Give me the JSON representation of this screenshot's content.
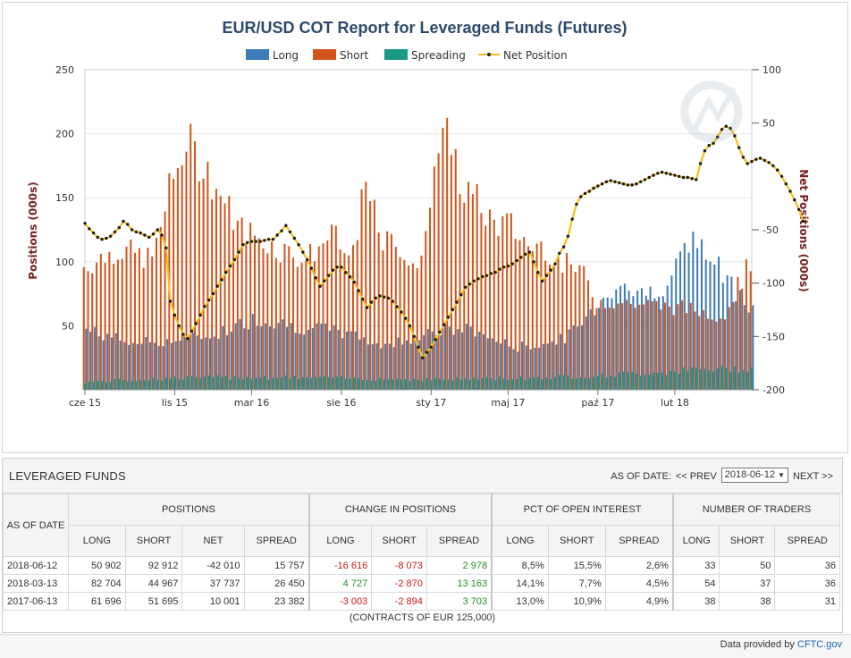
{
  "chart_data": {
    "type": "bar",
    "title": "EUR/USD COT Report for Leveraged Funds (Futures)",
    "legend": [
      "Long",
      "Short",
      "Spreading",
      "Net Position"
    ],
    "legend_position": "top",
    "ylabel_left": "Positions (000s)",
    "ylabel_right": "Net Positions (000s)",
    "ylim_left": [
      0,
      250
    ],
    "ylim_right": [
      -200,
      100
    ],
    "yticks_left": [
      "250",
      "200",
      "150",
      "100",
      "50"
    ],
    "yticks_right": [
      "100",
      "50",
      "-50",
      "-100",
      "-150",
      "-200"
    ],
    "xticks": [
      "cze 15",
      "lis 15",
      "mar 16",
      "sie 16",
      "sty 17",
      "maj 17",
      "paź 17",
      "lut 18"
    ],
    "grid": true,
    "colors": {
      "long": "#3d7ab8",
      "short": "#d2541a",
      "spreading": "#1a9a82",
      "net": "#f2c01e"
    },
    "x_start": "2015-06-16",
    "x_end": "2018-06-12",
    "x_interval": "weekly",
    "series_keypoints": {
      "long": [
        [
          0,
          47
        ],
        [
          10,
          37
        ],
        [
          20,
          38
        ],
        [
          30,
          43
        ],
        [
          40,
          56
        ],
        [
          50,
          49
        ],
        [
          60,
          45
        ],
        [
          70,
          34
        ],
        [
          80,
          45
        ],
        [
          90,
          47
        ],
        [
          100,
          33
        ],
        [
          110,
          37
        ],
        [
          115,
          48
        ],
        [
          120,
          68
        ],
        [
          125,
          85
        ],
        [
          130,
          73
        ],
        [
          136,
          85
        ],
        [
          142,
          118
        ],
        [
          150,
          85
        ],
        [
          156,
          65
        ]
      ],
      "short": [
        [
          0,
          96
        ],
        [
          8,
          110
        ],
        [
          16,
          102
        ],
        [
          20,
          155
        ],
        [
          24,
          195
        ],
        [
          30,
          165
        ],
        [
          36,
          128
        ],
        [
          44,
          113
        ],
        [
          52,
          102
        ],
        [
          58,
          122
        ],
        [
          62,
          100
        ],
        [
          66,
          157
        ],
        [
          70,
          115
        ],
        [
          74,
          113
        ],
        [
          78,
          88
        ],
        [
          82,
          180
        ],
        [
          86,
          200
        ],
        [
          88,
          160
        ],
        [
          92,
          147
        ],
        [
          96,
          130
        ],
        [
          100,
          128
        ],
        [
          104,
          113
        ],
        [
          108,
          112
        ],
        [
          112,
          98
        ],
        [
          116,
          95
        ],
        [
          120,
          70
        ],
        [
          130,
          67
        ],
        [
          140,
          64
        ],
        [
          150,
          58
        ],
        [
          153,
          82
        ],
        [
          156,
          98
        ]
      ],
      "spreading": [
        [
          0,
          6
        ],
        [
          20,
          9
        ],
        [
          40,
          10
        ],
        [
          60,
          9
        ],
        [
          80,
          8
        ],
        [
          100,
          9
        ],
        [
          120,
          11
        ],
        [
          140,
          15
        ],
        [
          156,
          17
        ]
      ],
      "net": [
        [
          0,
          -44
        ],
        [
          5,
          -58
        ],
        [
          10,
          -53
        ],
        [
          13,
          -42
        ],
        [
          17,
          -54
        ],
        [
          20,
          -50
        ],
        [
          24,
          -117
        ],
        [
          28,
          -152
        ],
        [
          32,
          -130
        ],
        [
          36,
          -110
        ],
        [
          40,
          -84
        ],
        [
          44,
          -64
        ],
        [
          48,
          -60
        ],
        [
          52,
          -57
        ],
        [
          56,
          -46
        ],
        [
          60,
          -65
        ],
        [
          64,
          -103
        ],
        [
          68,
          -85
        ],
        [
          72,
          -94
        ],
        [
          76,
          -123
        ],
        [
          80,
          -112
        ],
        [
          84,
          -126
        ],
        [
          88,
          -172
        ],
        [
          90,
          -145
        ],
        [
          92,
          -170
        ],
        [
          96,
          -118
        ],
        [
          100,
          -103
        ],
        [
          104,
          -94
        ],
        [
          108,
          -91
        ],
        [
          112,
          -72
        ],
        [
          114,
          -98
        ],
        [
          116,
          -57
        ],
        [
          118,
          -16
        ],
        [
          122,
          -4
        ],
        [
          126,
          -10
        ],
        [
          130,
          -8
        ],
        [
          134,
          4
        ],
        [
          138,
          0
        ],
        [
          142,
          -3
        ],
        [
          146,
          27
        ],
        [
          148,
          51
        ],
        [
          150,
          12
        ],
        [
          152,
          18
        ],
        [
          154,
          4
        ],
        [
          156,
          -42
        ]
      ]
    },
    "net_points": [
      -44,
      -49,
      -53,
      -57,
      -59,
      -58,
      -56,
      -52,
      -48,
      -42,
      -45,
      -50,
      -52,
      -53,
      -55,
      -57,
      -54,
      -50,
      -55,
      -67,
      -117,
      -130,
      -140,
      -148,
      -152,
      -145,
      -138,
      -130,
      -122,
      -116,
      -110,
      -103,
      -97,
      -90,
      -84,
      -78,
      -71,
      -64,
      -62,
      -61,
      -61,
      -61,
      -60,
      -59,
      -59,
      -55,
      -51,
      -46,
      -52,
      -58,
      -64,
      -71,
      -78,
      -86,
      -95,
      -103,
      -98,
      -93,
      -88,
      -85,
      -85,
      -90,
      -94,
      -99,
      -107,
      -115,
      -123,
      -118,
      -114,
      -112,
      -113,
      -114,
      -117,
      -122,
      -127,
      -133,
      -140,
      -150,
      -160,
      -170,
      -165,
      -160,
      -153,
      -146,
      -139,
      -132,
      -125,
      -118,
      -111,
      -104,
      -101,
      -98,
      -96,
      -94,
      -93,
      -91,
      -90,
      -87,
      -85,
      -84,
      -82,
      -79,
      -76,
      -73,
      -71,
      -80,
      -90,
      -98,
      -93,
      -88,
      -82,
      -72,
      -66,
      -56,
      -40,
      -26,
      -19,
      -16,
      -14,
      -11,
      -9,
      -7,
      -5,
      -4,
      -5,
      -6,
      -7,
      -8,
      -8,
      -7,
      -5,
      -3,
      -1,
      1,
      3,
      4,
      3,
      2,
      1,
      0,
      -1,
      -1,
      -2,
      -3,
      12,
      24,
      29,
      31,
      37,
      44,
      47,
      45,
      38,
      27,
      18,
      12,
      14,
      16,
      17,
      15,
      13,
      10,
      6,
      0,
      -7,
      -14,
      -22,
      -31,
      -42
    ],
    "notes": ""
  },
  "table": {
    "title": "LEVERAGED FUNDS",
    "as_of_label": "AS OF DATE:",
    "prev": "<< PREV",
    "next": "NEXT >>",
    "selected_date": "2018-06-12",
    "groups": [
      "POSITIONS",
      "CHANGE IN POSITIONS",
      "PCT OF OPEN INTEREST",
      "NUMBER OF TRADERS"
    ],
    "date_header": "AS OF DATE",
    "sub_headers": [
      "LONG",
      "SHORT",
      "NET",
      "SPREAD",
      "LONG",
      "SHORT",
      "SPREAD",
      "LONG",
      "SHORT",
      "SPREAD",
      "LONG",
      "SHORT",
      "SPREAD"
    ],
    "rows": [
      [
        "2018-06-12",
        "50 902",
        "92 912",
        "-42 010",
        "15 757",
        "-16 616",
        "-8 073",
        "2 978",
        "8,5%",
        "15,5%",
        "2,6%",
        "33",
        "50",
        "36"
      ],
      [
        "2018-03-13",
        "82 704",
        "44 967",
        "37 737",
        "26 450",
        "4 727",
        "-2 870",
        "13 163",
        "14,1%",
        "7,7%",
        "4,5%",
        "54",
        "37",
        "36"
      ],
      [
        "2017-06-13",
        "61 696",
        "51 695",
        "10 001",
        "23 382",
        "-3 003",
        "-2 894",
        "3 703",
        "13,0%",
        "10,9%",
        "4,9%",
        "38",
        "38",
        "31"
      ]
    ],
    "footnote": "(CONTRACTS OF EUR 125,000)"
  },
  "footer": {
    "text": "Data provided by ",
    "link": "CFTC.gov"
  }
}
